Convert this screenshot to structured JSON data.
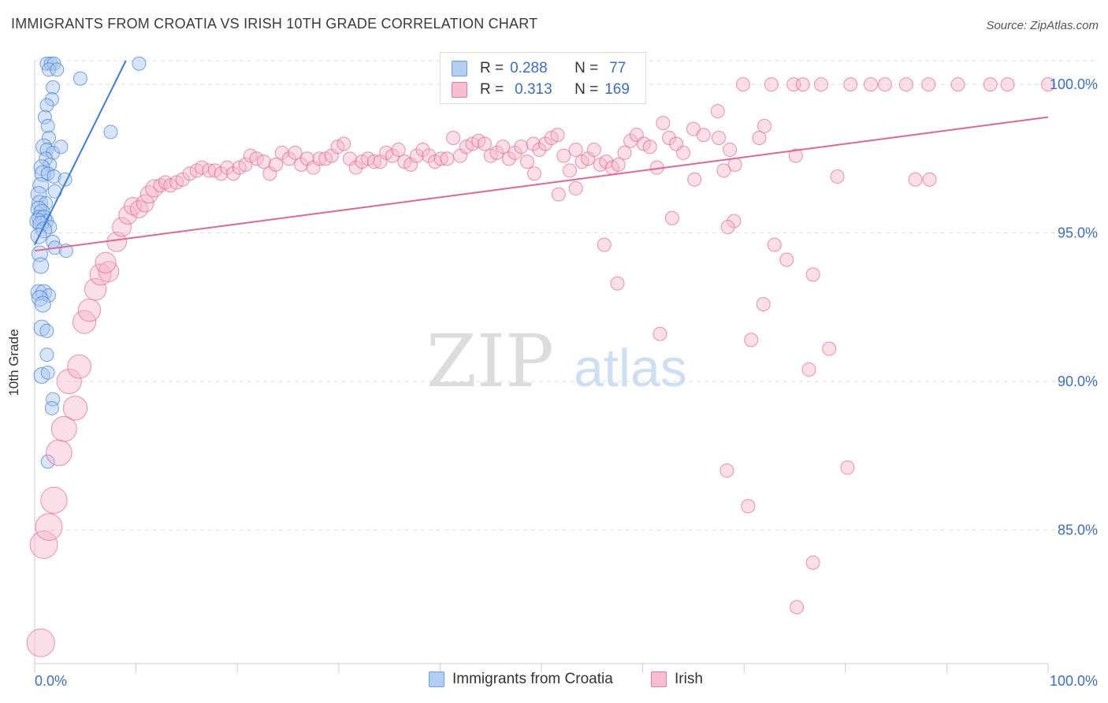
{
  "title": "IMMIGRANTS FROM CROATIA VS IRISH 10TH GRADE CORRELATION CHART",
  "source": "Source: ZipAtlas.com",
  "watermark": {
    "zip": "ZIP",
    "atlas": "atlas"
  },
  "stats": [
    {
      "r_label": "R =",
      "r_value": "0.288",
      "n_label": "N =",
      "n_value": "77",
      "color": "#6a9fe0",
      "fill": "#b4cdf3"
    },
    {
      "r_label": "R =",
      "r_value": "0.313",
      "n_label": "N =",
      "n_value": "169",
      "color": "#e57aa0",
      "fill": "#f7bfd1"
    }
  ],
  "legend": [
    {
      "label": "Immigrants from Croatia",
      "color": "#6a9fe0",
      "fill": "#b4cdf3"
    },
    {
      "label": "Irish",
      "color": "#e57aa0",
      "fill": "#f7bfd1"
    }
  ],
  "chart_data": {
    "type": "scatter",
    "title": "IMMIGRANTS FROM CROATIA VS IRISH 10TH GRADE CORRELATION CHART",
    "xlabel": "",
    "ylabel": "10th Grade",
    "xlim": [
      0,
      100
    ],
    "ylim": [
      80.5,
      100.8
    ],
    "x_tick_labels": [
      "0.0%",
      "100.0%"
    ],
    "y_ticks": [
      85,
      90,
      95,
      100
    ],
    "y_tick_labels": [
      "85.0%",
      "90.0%",
      "95.0%",
      "100.0%"
    ],
    "grid": true,
    "series": [
      {
        "name": "Immigrants from Croatia",
        "color": "#3d7dd6",
        "fill": "#a8c6f0",
        "trend": {
          "x": [
            0,
            9
          ],
          "y": [
            94.6,
            100.8
          ]
        },
        "points": [
          [
            1.2,
            100.7
          ],
          [
            1.6,
            100.7
          ],
          [
            1.9,
            100.7
          ],
          [
            1.4,
            100.5
          ],
          [
            2.2,
            100.5
          ],
          [
            4.5,
            100.2
          ],
          [
            10.3,
            100.7
          ],
          [
            1.8,
            99.9
          ],
          [
            1.7,
            99.5
          ],
          [
            1.2,
            99.3
          ],
          [
            1.0,
            98.9
          ],
          [
            1.3,
            98.6
          ],
          [
            1.4,
            98.2
          ],
          [
            7.5,
            98.4
          ],
          [
            0.9,
            97.9
          ],
          [
            1.2,
            97.8
          ],
          [
            1.8,
            97.7
          ],
          [
            1.1,
            97.5
          ],
          [
            1.5,
            97.3
          ],
          [
            2.6,
            97.9
          ],
          [
            0.7,
            97.2
          ],
          [
            0.8,
            97.0
          ],
          [
            1.3,
            97.0
          ],
          [
            1.9,
            96.9
          ],
          [
            3.0,
            96.8
          ],
          [
            0.6,
            96.6
          ],
          [
            2.0,
            96.4
          ],
          [
            0.4,
            96.3
          ],
          [
            0.5,
            96.0
          ],
          [
            1.1,
            96.0
          ],
          [
            0.4,
            95.8
          ],
          [
            0.7,
            95.7
          ],
          [
            0.5,
            95.5
          ],
          [
            0.9,
            95.5
          ],
          [
            1.2,
            95.4
          ],
          [
            0.3,
            95.4
          ],
          [
            0.6,
            95.3
          ],
          [
            1.5,
            95.2
          ],
          [
            0.9,
            95.1
          ],
          [
            0.4,
            94.9
          ],
          [
            1.8,
            94.7
          ],
          [
            2.0,
            94.5
          ],
          [
            3.1,
            94.4
          ],
          [
            0.5,
            94.3
          ],
          [
            0.6,
            93.9
          ],
          [
            0.4,
            93.0
          ],
          [
            0.9,
            93.0
          ],
          [
            1.4,
            92.9
          ],
          [
            0.5,
            92.8
          ],
          [
            0.8,
            92.6
          ],
          [
            0.7,
            91.8
          ],
          [
            1.2,
            91.7
          ],
          [
            1.2,
            90.9
          ],
          [
            0.7,
            90.2
          ],
          [
            1.3,
            90.3
          ],
          [
            1.8,
            89.4
          ],
          [
            1.7,
            89.1
          ],
          [
            1.3,
            87.3
          ]
        ]
      },
      {
        "name": "Irish",
        "color": "#e2668f",
        "fill": "#f5b6cb",
        "trend": {
          "x": [
            0,
            100
          ],
          "y": [
            94.4,
            98.9
          ]
        },
        "points": [
          [
            0.6,
            81.2
          ],
          [
            0.9,
            84.5
          ],
          [
            1.4,
            85.1
          ],
          [
            1.9,
            86.0
          ],
          [
            2.4,
            87.6
          ],
          [
            2.9,
            88.4
          ],
          [
            3.4,
            90.0
          ],
          [
            4.0,
            89.1
          ],
          [
            4.4,
            90.5
          ],
          [
            4.9,
            92.0
          ],
          [
            5.4,
            92.4
          ],
          [
            6.0,
            93.1
          ],
          [
            6.5,
            93.6
          ],
          [
            7.3,
            93.7
          ],
          [
            7.0,
            94.0
          ],
          [
            8.1,
            94.7
          ],
          [
            8.6,
            95.2
          ],
          [
            9.2,
            95.6
          ],
          [
            9.7,
            95.9
          ],
          [
            10.3,
            95.8
          ],
          [
            10.9,
            96.0
          ],
          [
            11.3,
            96.3
          ],
          [
            11.8,
            96.5
          ],
          [
            12.4,
            96.6
          ],
          [
            12.9,
            96.7
          ],
          [
            13.4,
            96.6
          ],
          [
            14.0,
            96.7
          ],
          [
            14.6,
            96.8
          ],
          [
            15.3,
            97.0
          ],
          [
            16.0,
            97.1
          ],
          [
            16.5,
            97.2
          ],
          [
            17.2,
            97.1
          ],
          [
            17.8,
            97.1
          ],
          [
            18.4,
            97.0
          ],
          [
            19.0,
            97.2
          ],
          [
            19.6,
            97.0
          ],
          [
            20.2,
            97.2
          ],
          [
            20.8,
            97.3
          ],
          [
            21.3,
            97.6
          ],
          [
            21.9,
            97.5
          ],
          [
            22.6,
            97.4
          ],
          [
            23.2,
            97.0
          ],
          [
            23.8,
            97.3
          ],
          [
            24.4,
            97.7
          ],
          [
            25.1,
            97.5
          ],
          [
            25.7,
            97.7
          ],
          [
            26.3,
            97.3
          ],
          [
            26.9,
            97.5
          ],
          [
            27.5,
            97.2
          ],
          [
            28.1,
            97.5
          ],
          [
            28.7,
            97.5
          ],
          [
            29.3,
            97.6
          ],
          [
            29.9,
            97.9
          ],
          [
            30.5,
            98.0
          ],
          [
            31.1,
            97.5
          ],
          [
            31.7,
            97.2
          ],
          [
            32.3,
            97.4
          ],
          [
            32.9,
            97.5
          ],
          [
            33.5,
            97.4
          ],
          [
            34.1,
            97.4
          ],
          [
            34.7,
            97.7
          ],
          [
            35.3,
            97.6
          ],
          [
            35.9,
            97.8
          ],
          [
            36.5,
            97.4
          ],
          [
            37.1,
            97.3
          ],
          [
            37.7,
            97.6
          ],
          [
            38.3,
            97.8
          ],
          [
            38.9,
            97.6
          ],
          [
            39.5,
            97.4
          ],
          [
            40.1,
            97.5
          ],
          [
            40.7,
            97.5
          ],
          [
            41.3,
            98.2
          ],
          [
            42.0,
            97.6
          ],
          [
            42.6,
            97.9
          ],
          [
            43.2,
            98.0
          ],
          [
            43.8,
            98.1
          ],
          [
            44.4,
            98.0
          ],
          [
            45.0,
            97.6
          ],
          [
            45.6,
            97.7
          ],
          [
            46.2,
            97.9
          ],
          [
            46.8,
            97.5
          ],
          [
            47.4,
            97.7
          ],
          [
            48.0,
            97.9
          ],
          [
            48.6,
            97.4
          ],
          [
            49.2,
            98.0
          ],
          [
            49.8,
            97.8
          ],
          [
            50.4,
            98.0
          ],
          [
            51.0,
            98.2
          ],
          [
            51.6,
            98.3
          ],
          [
            52.2,
            97.6
          ],
          [
            52.8,
            97.1
          ],
          [
            53.4,
            97.8
          ],
          [
            54.0,
            97.4
          ],
          [
            54.6,
            97.5
          ],
          [
            55.2,
            97.8
          ],
          [
            55.8,
            97.3
          ],
          [
            56.4,
            97.4
          ],
          [
            57.0,
            97.2
          ],
          [
            57.6,
            97.3
          ],
          [
            58.2,
            97.7
          ],
          [
            58.8,
            98.1
          ],
          [
            59.4,
            98.3
          ],
          [
            60.1,
            98.0
          ],
          [
            60.7,
            97.9
          ],
          [
            61.4,
            97.2
          ],
          [
            62.0,
            98.7
          ],
          [
            62.6,
            98.2
          ],
          [
            63.3,
            98.0
          ],
          [
            64.0,
            97.7
          ],
          [
            65.0,
            98.5
          ],
          [
            66.0,
            98.3
          ],
          [
            67.5,
            98.2
          ],
          [
            68.6,
            97.8
          ],
          [
            69.9,
            100.0
          ],
          [
            72.7,
            100.0
          ],
          [
            74.9,
            100.0
          ],
          [
            75.8,
            100.0
          ],
          [
            77.6,
            100.0
          ],
          [
            80.5,
            100.0
          ],
          [
            82.5,
            100.0
          ],
          [
            83.9,
            100.0
          ],
          [
            86.0,
            100.0
          ],
          [
            88.2,
            100.0
          ],
          [
            91.1,
            100.0
          ],
          [
            94.3,
            100.0
          ],
          [
            96.0,
            100.0
          ],
          [
            100,
            100.0
          ],
          [
            71.5,
            98.2
          ],
          [
            69.1,
            97.3
          ],
          [
            69.0,
            95.4
          ],
          [
            68.4,
            95.2
          ],
          [
            73.0,
            94.6
          ],
          [
            74.2,
            94.1
          ],
          [
            76.8,
            93.6
          ],
          [
            71.9,
            92.6
          ],
          [
            70.7,
            91.4
          ],
          [
            78.4,
            91.1
          ],
          [
            76.4,
            90.4
          ],
          [
            56.2,
            94.6
          ],
          [
            65.1,
            96.8
          ],
          [
            75.1,
            97.6
          ],
          [
            79.2,
            96.9
          ],
          [
            68.0,
            97.1
          ],
          [
            86.9,
            96.8
          ],
          [
            88.3,
            96.8
          ],
          [
            67.4,
            99.1
          ],
          [
            72.0,
            98.6
          ],
          [
            62.9,
            95.5
          ],
          [
            68.3,
            87.0
          ],
          [
            80.2,
            87.1
          ],
          [
            70.4,
            85.8
          ],
          [
            76.8,
            83.9
          ],
          [
            75.2,
            82.4
          ],
          [
            57.5,
            93.3
          ],
          [
            61.7,
            91.6
          ],
          [
            51.7,
            96.3
          ],
          [
            53.4,
            96.5
          ],
          [
            49.3,
            97.0
          ]
        ]
      }
    ]
  }
}
